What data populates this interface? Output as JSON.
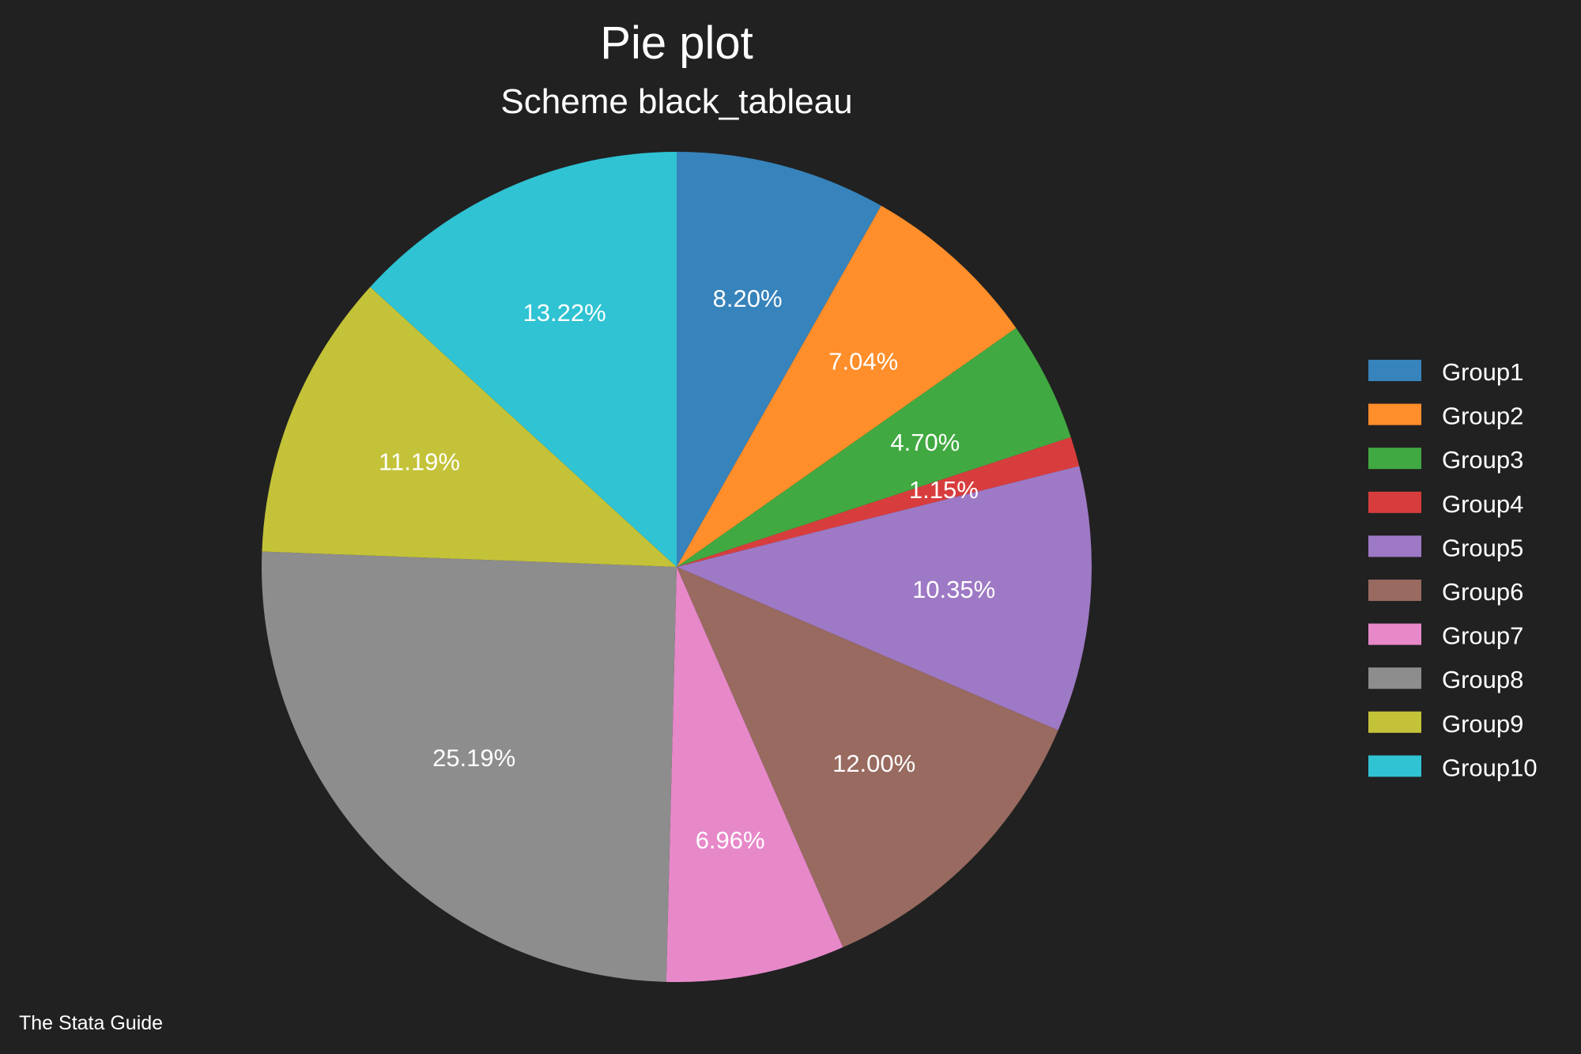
{
  "chart_data": {
    "type": "pie",
    "title": "Pie plot",
    "subtitle": "Scheme black_tableau",
    "note": "The Stata Guide",
    "legend_position": "right",
    "start_angle_deg": 90,
    "direction": "clockwise",
    "slices": [
      {
        "label": "Group1",
        "value": 8.2,
        "display": "8.20%",
        "color": "#3783bb"
      },
      {
        "label": "Group2",
        "value": 7.04,
        "display": "7.04%",
        "color": "#ff8e2b"
      },
      {
        "label": "Group3",
        "value": 4.7,
        "display": "4.70%",
        "color": "#41a941"
      },
      {
        "label": "Group4",
        "value": 1.15,
        "display": "1.15%",
        "color": "#d83d3d"
      },
      {
        "label": "Group5",
        "value": 10.35,
        "display": "10.35%",
        "color": "#9e79c5"
      },
      {
        "label": "Group6",
        "value": 12.0,
        "display": "12.00%",
        "color": "#986a60"
      },
      {
        "label": "Group7",
        "value": 6.96,
        "display": "6.96%",
        "color": "#e788c9"
      },
      {
        "label": "Group8",
        "value": 25.19,
        "display": "25.19%",
        "color": "#8d8d8d"
      },
      {
        "label": "Group9",
        "value": 11.19,
        "display": "11.19%",
        "color": "#c4c238"
      },
      {
        "label": "Group10",
        "value": 13.22,
        "display": "13.22%",
        "color": "#2fc3d3"
      }
    ],
    "background": "#212121",
    "text_color": "#ffffff"
  }
}
